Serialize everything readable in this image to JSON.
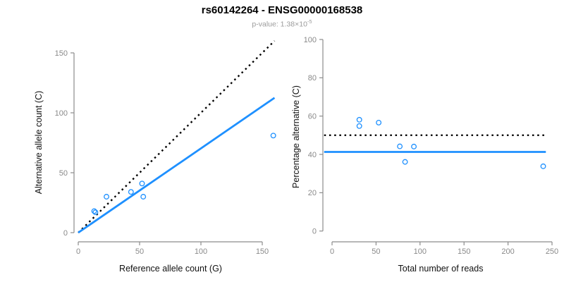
{
  "title": "rs60142264 - ENSG00000168538",
  "subtitle": {
    "p_value_prefix": "p-value: 1.38×10",
    "p_value_exponent": "-5"
  },
  "colors": {
    "accent_blue": "#1E90FF",
    "dotted_black": "#000000",
    "axis_gray": "#8c8c8c",
    "tick_label_gray": "#898989",
    "subtitle_gray": "#9b9b9b"
  },
  "chart_data": [
    {
      "id": "allele-counts-scatter",
      "type": "scatter",
      "xlabel": "Reference allele count (G)",
      "ylabel": "Alternative allele count (C)",
      "xlim": [
        0,
        160
      ],
      "ylim": [
        0,
        160
      ],
      "xticks": [
        0,
        50,
        100,
        150
      ],
      "yticks": [
        0,
        50,
        100,
        150
      ],
      "grid": false,
      "points": [
        [
          13,
          18
        ],
        [
          14,
          17
        ],
        [
          23,
          30
        ],
        [
          43,
          34
        ],
        [
          52,
          41
        ],
        [
          53,
          30
        ],
        [
          159,
          81
        ]
      ],
      "lines": [
        {
          "name": "identity-line",
          "style": "dotted",
          "color": "#000000",
          "from": [
            0,
            0
          ],
          "to": [
            160,
            160
          ]
        },
        {
          "name": "fit-line",
          "style": "solid",
          "color": "#1E90FF",
          "from": [
            0,
            0
          ],
          "to": [
            160,
            112.5
          ]
        }
      ]
    },
    {
      "id": "percentage-alternative-scatter",
      "type": "scatter",
      "xlabel": "Total number of reads",
      "ylabel": "Percentage alternative (C)",
      "xlim": [
        0,
        255
      ],
      "ylim": [
        0,
        100
      ],
      "xticks": [
        0,
        50,
        100,
        150,
        200,
        250
      ],
      "yticks": [
        0,
        20,
        40,
        60,
        80,
        100
      ],
      "grid": false,
      "points": [
        [
          31,
          58.1
        ],
        [
          31,
          54.8
        ],
        [
          53,
          56.6
        ],
        [
          77,
          44.2
        ],
        [
          83,
          36.1
        ],
        [
          93,
          44.1
        ],
        [
          240,
          33.8
        ]
      ],
      "lines": [
        {
          "name": "fifty-percent-line",
          "style": "dotted",
          "color": "#000000",
          "y": 50
        },
        {
          "name": "mean-percentage-line",
          "style": "solid",
          "color": "#1E90FF",
          "y": 41.3
        }
      ]
    }
  ]
}
